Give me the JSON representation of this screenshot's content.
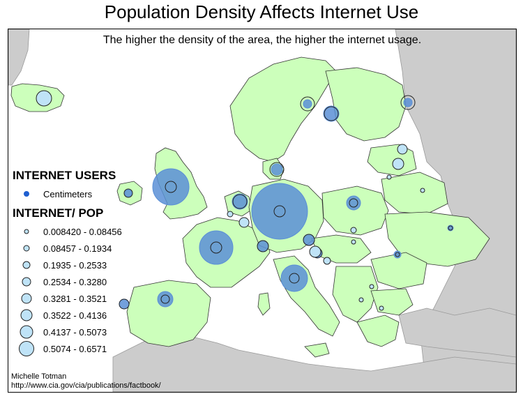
{
  "title": "Population Density Affects Internet Use",
  "subtitle": "The higher the density of the area, the higher the internet usage.",
  "legend": {
    "users_heading": "INTERNET USERS",
    "users_item": "Centimeters",
    "ratio_heading": "INTERNET/ POP",
    "classes": [
      "0.008420 - 0.08456",
      "0.08457 - 0.1934",
      "0.1935 - 0.2533",
      "0.2534 - 0.3280",
      "0.3281 - 0.3521",
      "0.3522 - 0.4136",
      "0.4137 - 0.5073",
      "0.5074 - 0.6571"
    ]
  },
  "credits": {
    "author": "Michelle Totman",
    "source": "http://www.cia.gov/cia/publications/factbook/"
  },
  "colors": {
    "land": "#ccffbb",
    "other_land": "#cccccc",
    "sea": "#ffffff",
    "users_circle": "#5b8fd6",
    "users_dot": "#1f5fd0",
    "ratio_circle_fill": "#bfe3f7",
    "outline": "#333333"
  }
}
